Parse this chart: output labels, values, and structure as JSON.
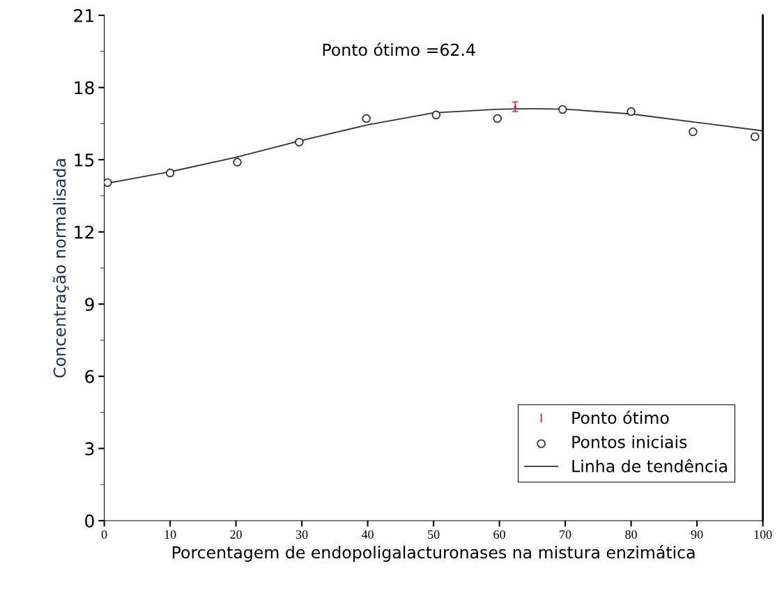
{
  "chart_data": {
    "type": "scatter",
    "xlabel": "Porcentagem de endopoligalacturonases na mistura enzimática",
    "ylabel": "Concentração normalisada",
    "annotations": [
      "Ponto ótimo =62.4"
    ],
    "xlim": [
      0,
      100
    ],
    "xticks": [
      0,
      10,
      20,
      30,
      40,
      50,
      60,
      70,
      80,
      90,
      100
    ],
    "ylim": [
      0,
      21
    ],
    "yticks": [
      0,
      3,
      6,
      9,
      12,
      15,
      18,
      21
    ],
    "grid": false,
    "legend": "bottom right",
    "series": [
      {
        "name": "Ponto ótimo",
        "marker": "none",
        "color": "#e8202a",
        "x": [
          62.4
        ],
        "values": [
          17.2
        ],
        "errors": [
          0.2
        ]
      },
      {
        "name": "Pontos iniciais",
        "marker": "circle",
        "color": "#333333",
        "x": [
          0.5,
          10,
          20.2,
          29.6,
          39.8,
          50.4,
          59.7,
          69.6,
          80,
          89.4,
          98.8
        ],
        "values": [
          14.05,
          14.45,
          14.9,
          15.73,
          16.71,
          16.86,
          16.71,
          17.09,
          17.0,
          16.16,
          15.96
        ]
      },
      {
        "name": "Linha de tendência",
        "type": "line",
        "marker": "none",
        "color": "#333333",
        "x": [
          0,
          10,
          20,
          30,
          40,
          50,
          60,
          65,
          70,
          80,
          90,
          100
        ],
        "values": [
          14.0,
          14.5,
          15.1,
          15.8,
          16.45,
          16.95,
          17.1,
          17.12,
          17.1,
          16.9,
          16.55,
          16.2
        ]
      }
    ]
  }
}
